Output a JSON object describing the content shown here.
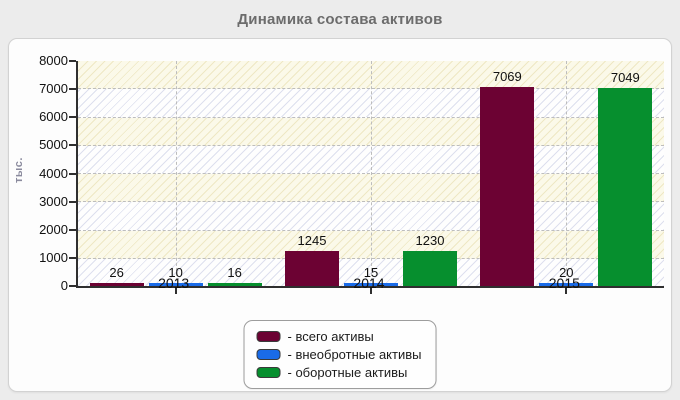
{
  "page": {
    "title": "Динамика состава активов",
    "background_color": "#ececec",
    "panel_color": "#fdfdfd"
  },
  "chart_data": {
    "type": "bar",
    "title": "Динамика состава активов",
    "ylabel": "тыс.",
    "xlabel": "",
    "categories": [
      "2013",
      "2014",
      "2015"
    ],
    "series": [
      {
        "name": "всего активы",
        "legend_label": "- всего активы",
        "color": "#6c0233",
        "values": [
          26,
          1245,
          7069
        ]
      },
      {
        "name": "внеобротные активы",
        "legend_label": "- внеобротные активы",
        "color": "#1a6be8",
        "values": [
          10,
          15,
          20
        ]
      },
      {
        "name": "оборотные активы",
        "legend_label": "- оборотные активы",
        "color": "#068f2e",
        "values": [
          16,
          1230,
          7049
        ]
      }
    ],
    "ylim": [
      0,
      8000
    ],
    "ytick_step": 1000,
    "grid": "dashed",
    "legend_position": "bottom",
    "bar_value_labels": true
  }
}
